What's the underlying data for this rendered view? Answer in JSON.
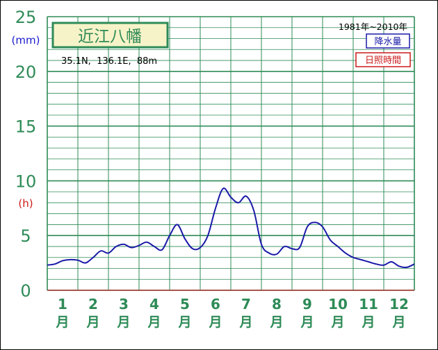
{
  "colors": {
    "grid": "#2e8b57",
    "axis_text": "#2e8b57",
    "precip_line": "#1a1aa8",
    "precip_unit": "#1a1acc",
    "sunshine_unit": "#cc1a1a",
    "title_bg": "#f7f3c8",
    "title_border": "#2e8b57"
  },
  "chart_data": {
    "type": "line",
    "title": "近江八幡",
    "location": "35.1N,  136.1E,  88m",
    "period": "1981年~2010年",
    "units": {
      "precip": "(mm)",
      "sunshine": "(h)"
    },
    "legend": [
      {
        "label": "降水量",
        "color": "#1a1aa8"
      },
      {
        "label": "日照時間",
        "color": "#cc1a1a"
      }
    ],
    "ylim": [
      0,
      25
    ],
    "y_ticks": [
      "0",
      "5",
      "10",
      "15",
      "20",
      "25"
    ],
    "categories": [
      "1",
      "2",
      "3",
      "4",
      "5",
      "6",
      "7",
      "8",
      "9",
      "10",
      "11",
      "12"
    ],
    "month_suffix": "月",
    "series": [
      {
        "name": "降水量",
        "x": [
          0.0,
          0.25,
          0.5,
          0.75,
          1.0,
          1.25,
          1.5,
          1.75,
          2.0,
          2.25,
          2.5,
          2.75,
          3.0,
          3.25,
          3.5,
          3.75,
          4.0,
          4.25,
          4.5,
          4.75,
          5.0,
          5.25,
          5.5,
          5.75,
          6.0,
          6.25,
          6.5,
          6.75,
          7.0,
          7.25,
          7.5,
          7.75,
          8.0,
          8.25,
          8.5,
          8.75,
          9.0,
          9.25,
          9.5,
          9.75,
          10.0,
          10.25,
          10.5,
          10.75,
          11.0,
          11.25,
          11.5,
          11.75,
          12.0
        ],
        "values": [
          2.3,
          2.4,
          2.7,
          2.8,
          2.75,
          2.5,
          3.0,
          3.6,
          3.4,
          4.0,
          4.2,
          3.9,
          4.1,
          4.4,
          4.0,
          3.7,
          5.0,
          6.0,
          4.7,
          3.8,
          3.9,
          5.0,
          7.5,
          9.3,
          8.5,
          8.0,
          8.6,
          7.3,
          4.2,
          3.4,
          3.3,
          4.0,
          3.8,
          3.9,
          5.8,
          6.2,
          5.8,
          4.6,
          4.0,
          3.4,
          3.0,
          2.8,
          2.6,
          2.4,
          2.3,
          2.6,
          2.2,
          2.1,
          2.4
        ]
      }
    ]
  }
}
